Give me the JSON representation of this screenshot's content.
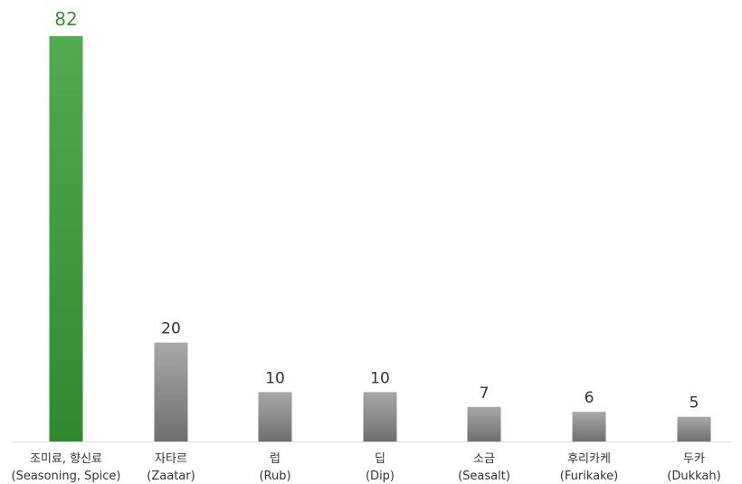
{
  "chart_data": {
    "type": "bar",
    "categories": [
      {
        "ko": "조미료, 향신료",
        "en": "(Seasoning, Spice)"
      },
      {
        "ko": "자타르",
        "en": "(Zaatar)"
      },
      {
        "ko": "럽",
        "en": "(Rub)"
      },
      {
        "ko": "딥",
        "en": "(Dip)"
      },
      {
        "ko": "소금",
        "en": "(Seasalt)"
      },
      {
        "ko": "후리카케",
        "en": "(Furikake)"
      },
      {
        "ko": "두카",
        "en": "(Dukkah)"
      }
    ],
    "values": [
      82,
      20,
      10,
      10,
      7,
      6,
      5
    ],
    "highlight_index": 0,
    "colors": {
      "highlight_top": "#52ab4e",
      "highlight_bottom": "#2f8a2f",
      "bar_top": "#a8a8a8",
      "bar_bottom": "#6f6f6f",
      "highlight_label": "#3a8f36",
      "label": "#333333",
      "axis": "#d9d9d9"
    },
    "ylim": [
      0,
      82
    ],
    "grid": false,
    "legend": "none",
    "title": "",
    "xlabel": "",
    "ylabel": ""
  }
}
